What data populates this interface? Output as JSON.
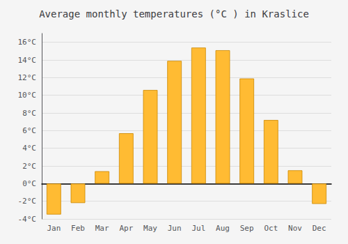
{
  "chart_data": {
    "type": "bar",
    "title": "Average monthly temperatures (°C ) in Kraslice",
    "categories": [
      "Jan",
      "Feb",
      "Mar",
      "Apr",
      "May",
      "Jun",
      "Jul",
      "Aug",
      "Sep",
      "Oct",
      "Nov",
      "Dec"
    ],
    "values": [
      -3.5,
      -2.2,
      1.4,
      5.7,
      10.6,
      13.9,
      15.4,
      15.1,
      11.9,
      7.2,
      1.5,
      -2.3
    ],
    "color": "#FFBB33",
    "ylim": [
      -4,
      17
    ],
    "yticks": [
      {
        "value": -4,
        "label": "-4°C"
      },
      {
        "value": -2,
        "label": "-2°C"
      },
      {
        "value": 0,
        "label": "0°C"
      },
      {
        "value": 2,
        "label": "2°C"
      },
      {
        "value": 4,
        "label": "4°C"
      },
      {
        "value": 6,
        "label": "6°C"
      },
      {
        "value": 8,
        "label": "8°C"
      },
      {
        "value": 10,
        "label": "10°C"
      },
      {
        "value": 12,
        "label": "12°C"
      },
      {
        "value": 14,
        "label": "14°C"
      },
      {
        "value": 16,
        "label": "16°C"
      }
    ],
    "grid": true
  }
}
